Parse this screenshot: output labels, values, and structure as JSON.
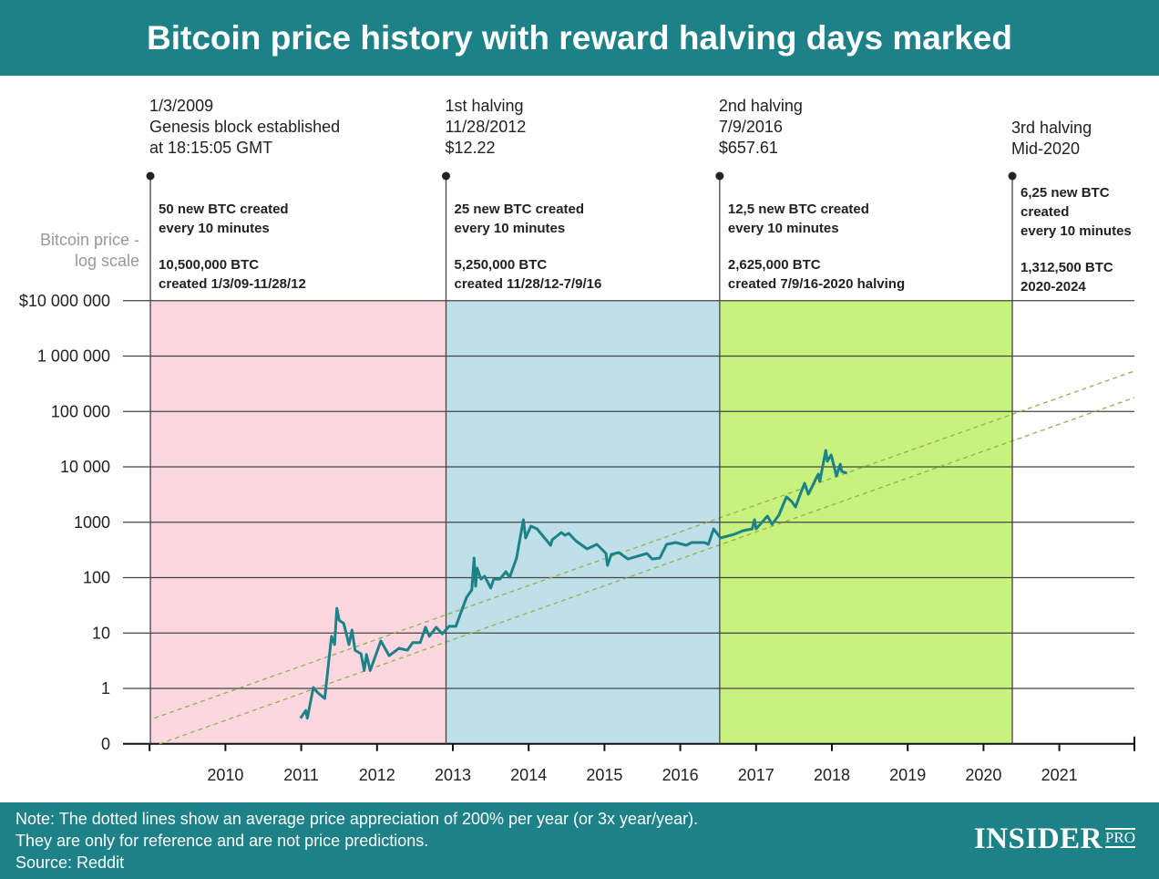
{
  "colors": {
    "accent": "#1d8288",
    "period1": "#fcd7e0",
    "period2": "#bfe0e8",
    "period3": "#c8f27e",
    "price_line": "#1d8288",
    "reference_line": "#8fb24c",
    "grid": "#444444"
  },
  "chart_data": {
    "type": "line",
    "title": "Bitcoin price history with reward halving days marked",
    "ylabel": [
      "Bitcoin price -",
      "log scale"
    ],
    "yscale": "log",
    "ylim": [
      0.1,
      10000000
    ],
    "xlim": [
      2009.0,
      2022.0
    ],
    "grid": "horizontal",
    "yticks": [
      {
        "value": 0.1,
        "label": "0"
      },
      {
        "value": 1,
        "label": "1"
      },
      {
        "value": 10,
        "label": "10"
      },
      {
        "value": 100,
        "label": "100"
      },
      {
        "value": 1000,
        "label": "1000"
      },
      {
        "value": 10000,
        "label": "10 000"
      },
      {
        "value": 100000,
        "label": "100 000"
      },
      {
        "value": 1000000,
        "label": "1 000 000"
      },
      {
        "value": 10000000,
        "label": "$10 000 000"
      }
    ],
    "xticks": [
      {
        "value": 2010,
        "label": "2010"
      },
      {
        "value": 2011,
        "label": "2011"
      },
      {
        "value": 2012,
        "label": "2012"
      },
      {
        "value": 2013,
        "label": "2013"
      },
      {
        "value": 2014,
        "label": "2014"
      },
      {
        "value": 2015,
        "label": "2015"
      },
      {
        "value": 2016,
        "label": "2016"
      },
      {
        "value": 2017,
        "label": "2017"
      },
      {
        "value": 2018,
        "label": "2018"
      },
      {
        "value": 2019,
        "label": "2019"
      },
      {
        "value": 2020,
        "label": "2020"
      },
      {
        "value": 2021,
        "label": "2021"
      }
    ],
    "series": [
      {
        "x": [
          2010.99,
          2011.06,
          2011.08,
          2011.16,
          2011.22,
          2011.31,
          2011.37,
          2011.4,
          2011.44,
          2011.47,
          2011.5,
          2011.56,
          2011.63,
          2011.67,
          2011.71,
          2011.79,
          2011.83,
          2011.86,
          2011.91,
          2012.05,
          2012.16,
          2012.29,
          2012.4,
          2012.47,
          2012.57,
          2012.64,
          2012.69,
          2012.78,
          2012.86,
          2012.95,
          2013.04,
          2013.18,
          2013.25,
          2013.28,
          2013.3,
          2013.32,
          2013.37,
          2013.42,
          2013.5,
          2013.54,
          2013.62,
          2013.7,
          2013.75,
          2013.84,
          2013.93,
          2013.96,
          2014.03,
          2014.11,
          2014.29,
          2014.31,
          2014.43,
          2014.48,
          2014.53,
          2014.62,
          2014.77,
          2014.9,
          2015.02,
          2015.04,
          2015.09,
          2015.19,
          2015.31,
          2015.56,
          2015.63,
          2015.73,
          2015.82,
          2015.94,
          2016.08,
          2016.15,
          2016.32,
          2016.37,
          2016.44,
          2016.53,
          2016.71,
          2016.83,
          2016.95,
          2016.98,
          2017.0,
          2017.15,
          2017.21,
          2017.3,
          2017.4,
          2017.47,
          2017.52,
          2017.57,
          2017.64,
          2017.69,
          2017.82,
          2017.84,
          2017.92,
          2017.94,
          2017.99,
          2018.06,
          2018.11,
          2018.13,
          2018.2
        ],
        "y": [
          0.29,
          0.4,
          0.29,
          1.04,
          0.83,
          0.66,
          3.8,
          8.7,
          6.2,
          28,
          17,
          15,
          6.2,
          11.3,
          4.9,
          4.2,
          2.1,
          4.1,
          2.1,
          7.2,
          3.9,
          5.3,
          4.9,
          6.7,
          6.7,
          12.7,
          8.7,
          12.7,
          9.7,
          13.2,
          13.2,
          44,
          60,
          226,
          70,
          149,
          94,
          106,
          65,
          94,
          94,
          128,
          102,
          226,
          1110,
          520,
          850,
          760,
          384,
          482,
          653,
          582,
          628,
          465,
          330,
          399,
          273,
          167,
          263,
          284,
          217,
          273,
          217,
          226,
          399,
          430,
          384,
          430,
          430,
          399,
          760,
          520,
          605,
          705,
          760,
          1110,
          760,
          1290,
          918,
          1340,
          2870,
          2370,
          1890,
          2870,
          5060,
          3210,
          7390,
          5460,
          19800,
          12600,
          16400,
          6840,
          11200,
          8280,
          7670
        ]
      }
    ],
    "reference_lines": [
      {
        "x": [
          2009.06,
          2021.99
        ],
        "y": [
          0.29,
          537000
        ],
        "style": "dotted"
      },
      {
        "x": [
          2009.13,
          2021.99
        ],
        "y": [
          0.1,
          178000
        ],
        "style": "dotted"
      }
    ],
    "events": [
      {
        "x": 2009.01,
        "lines": [
          "1/3/2009",
          "Genesis block established",
          "at 18:15:05 GMT"
        ]
      },
      {
        "x": 2012.91,
        "lines": [
          "1st halving",
          "11/28/2012",
          "$12.22"
        ]
      },
      {
        "x": 2016.52,
        "lines": [
          "2nd halving",
          "7/9/2016",
          "$657.61"
        ]
      },
      {
        "x": 2020.38,
        "lines": [
          "3rd halving",
          "Mid-2020"
        ]
      }
    ],
    "periods": [
      {
        "from": 2009.01,
        "to": 2012.91,
        "color": "#fcd7e0",
        "reward": [
          "50 new BTC created",
          "every 10 minutes"
        ],
        "supply": [
          "10,500,000 BTC",
          "created 1/3/09-11/28/12"
        ]
      },
      {
        "from": 2012.91,
        "to": 2016.52,
        "color": "#bfe0e8",
        "reward": [
          "25 new BTC created",
          "every 10 minutes"
        ],
        "supply": [
          "5,250,000 BTC",
          "created 11/28/12-7/9/16"
        ]
      },
      {
        "from": 2016.52,
        "to": 2020.38,
        "color": "#c8f27e",
        "reward": [
          "12,5 new BTC created",
          "every 10 minutes"
        ],
        "supply": [
          "2,625,000 BTC",
          "created 7/9/16-2020 halving"
        ]
      },
      {
        "from": 2020.38,
        "to": null,
        "color": null,
        "reward": [
          "6,25 new BTC",
          "created",
          "every 10 minutes"
        ],
        "supply": [
          "1,312,500 BTC",
          "2020-2024"
        ]
      }
    ]
  },
  "footer": {
    "note_lines": [
      "Note: The dotted lines show an average price appreciation of 200% per year (or 3x year/year).",
      "They are only for reference and are not price predictions."
    ],
    "source": "Source: Reddit",
    "logo": {
      "main": "INSIDER",
      "sub": "PRO"
    }
  }
}
